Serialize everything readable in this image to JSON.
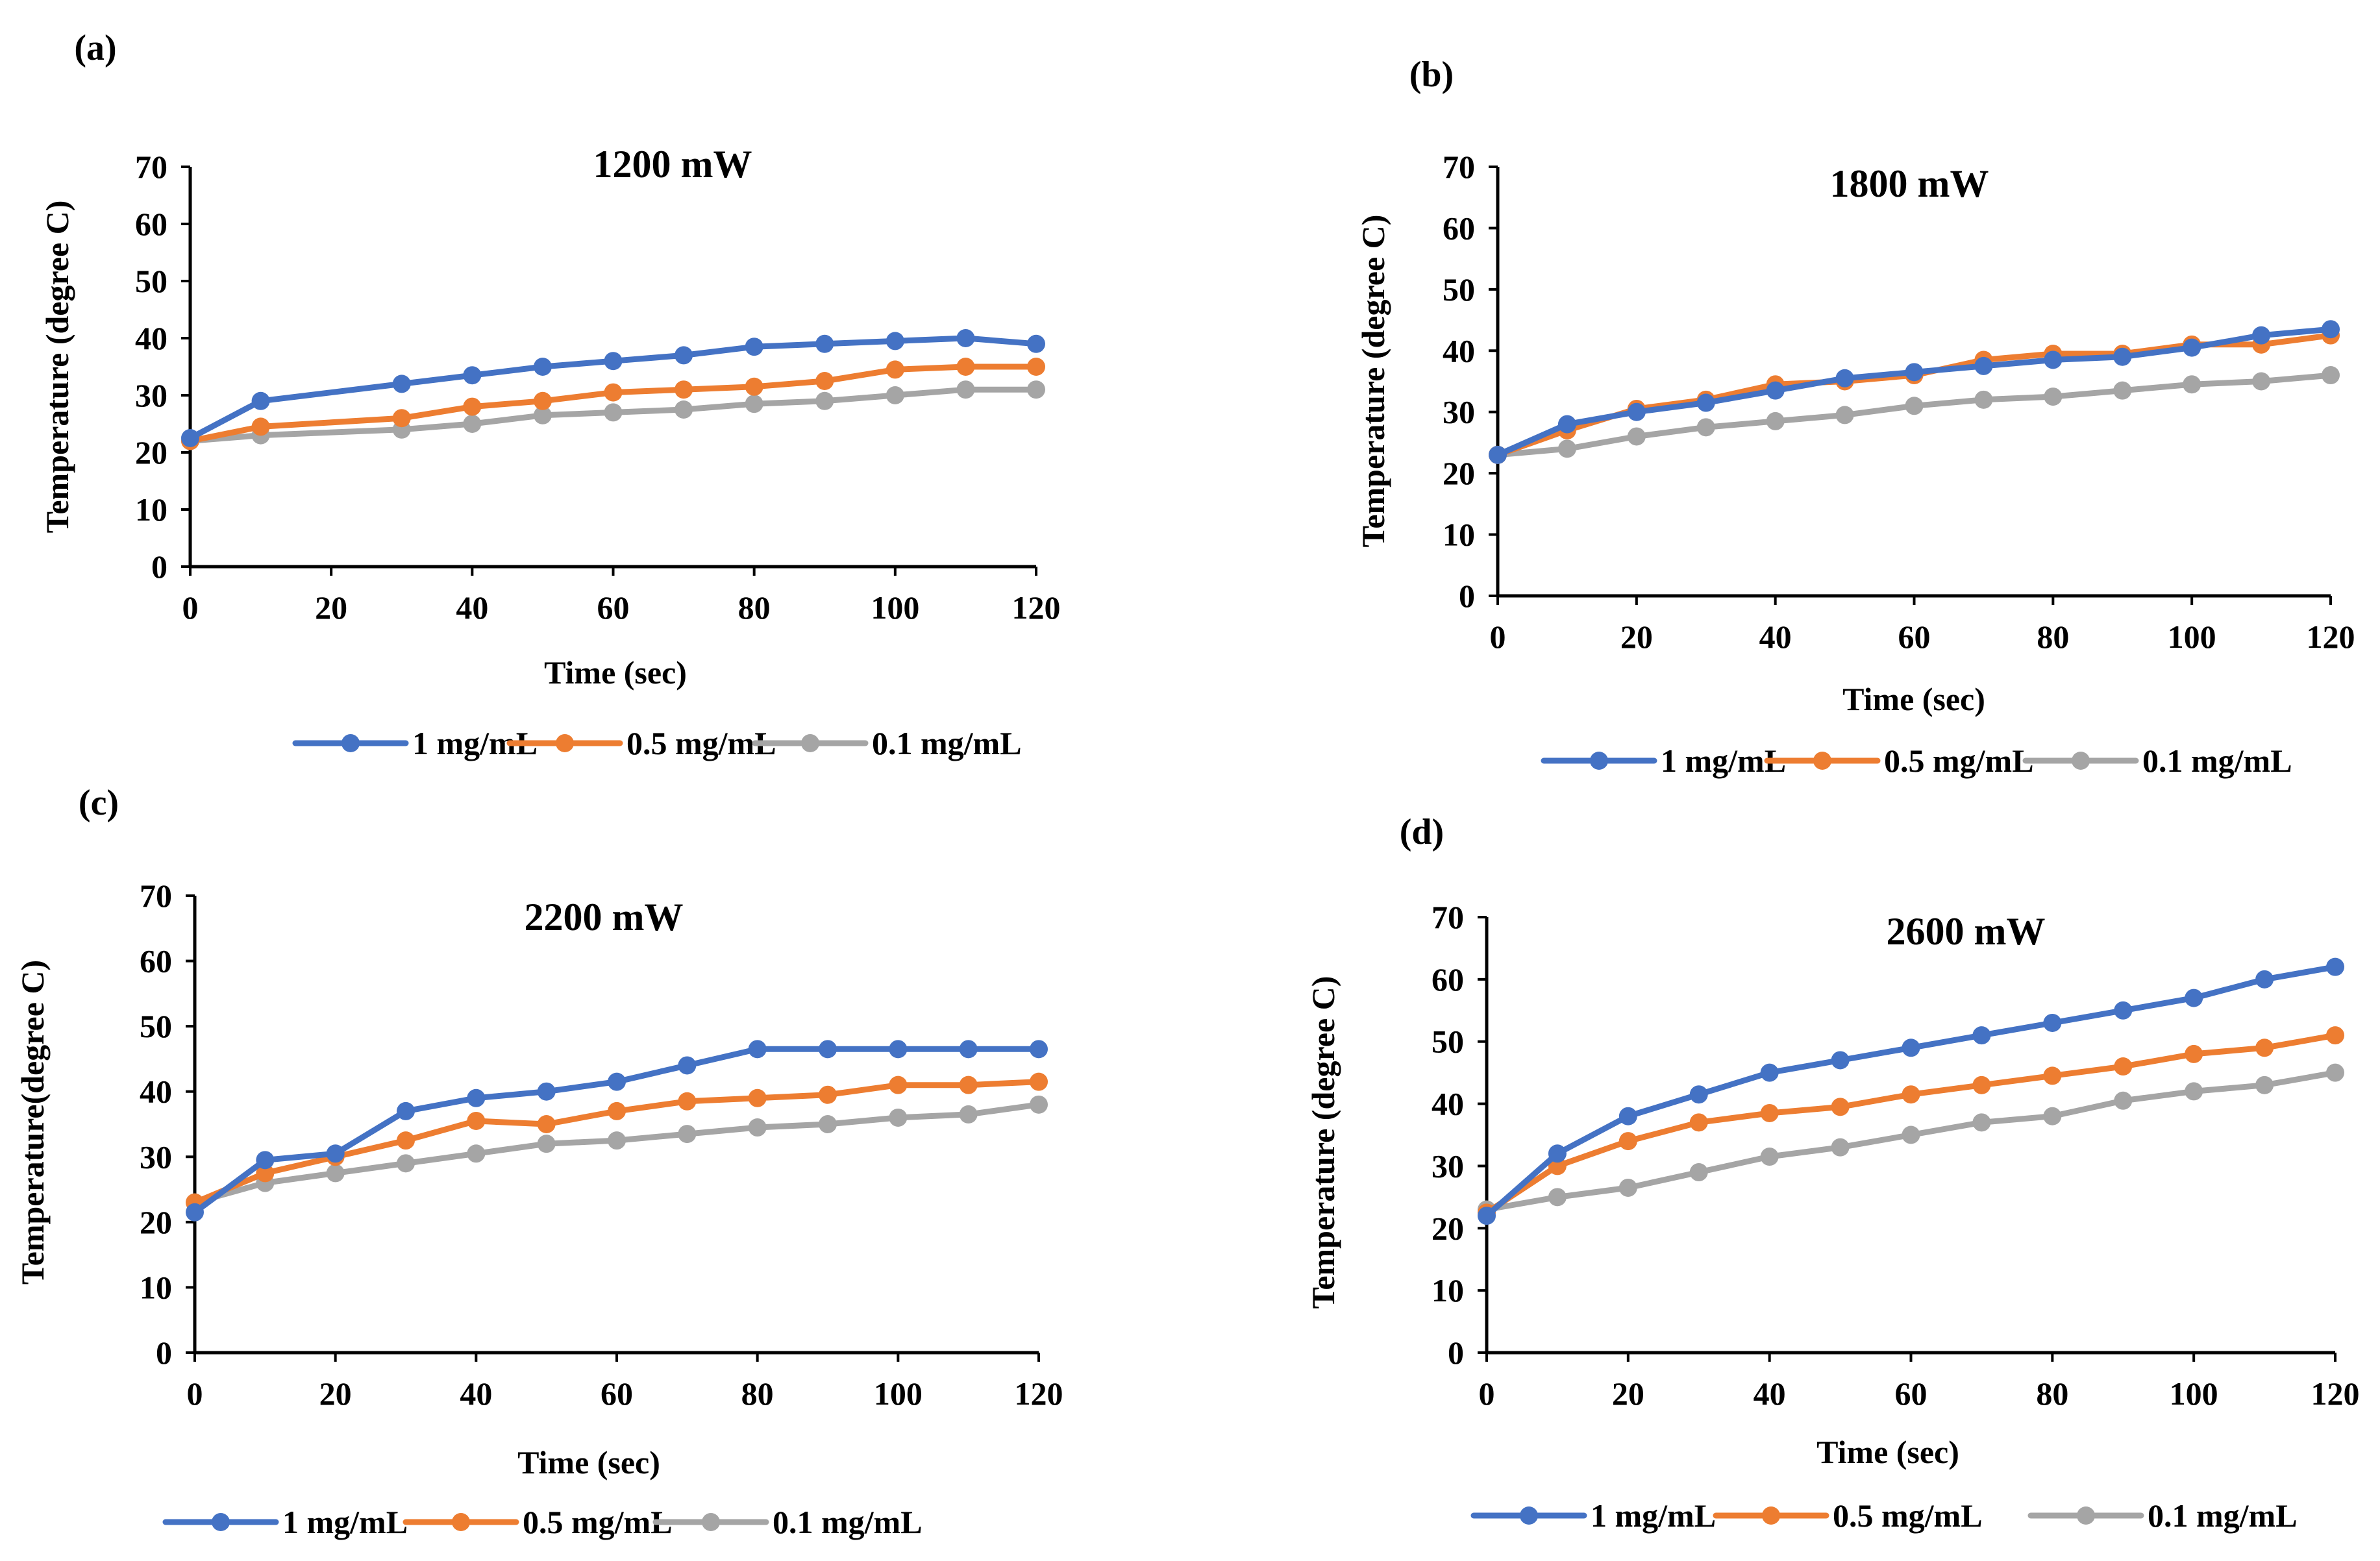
{
  "colors": {
    "s1": "#4472C4",
    "s2": "#ED7D31",
    "s3": "#A5A5A5",
    "axis": "#000000"
  },
  "chart_data": [
    {
      "label": "(a)",
      "type": "line",
      "title": "1200 mW",
      "xlabel": "Time (sec)",
      "ylabel": "Temperature (degree C)",
      "xlim": [
        0,
        120
      ],
      "ylim": [
        0,
        70
      ],
      "xticks": [
        "0",
        "20",
        "40",
        "60",
        "80",
        "100",
        "120"
      ],
      "yticks": [
        "0",
        "10",
        "20",
        "30",
        "40",
        "50",
        "60",
        "70"
      ],
      "x": [
        0,
        10,
        30,
        40,
        50,
        60,
        70,
        80,
        90,
        100,
        110,
        120
      ],
      "legend_position": "bottom",
      "series": [
        {
          "name": "1 mg/mL",
          "values": [
            22.5,
            29,
            32,
            33.5,
            35,
            36,
            37,
            38.5,
            39,
            39.5,
            40,
            39
          ]
        },
        {
          "name": "0.5 mg/mL",
          "values": [
            22,
            24.5,
            26,
            28,
            29,
            30.5,
            31,
            31.5,
            32.5,
            34.5,
            35,
            35
          ]
        },
        {
          "name": "0.1 mg/mL",
          "values": [
            22,
            23,
            24,
            25,
            26.5,
            27,
            27.5,
            28.5,
            29,
            30,
            31,
            31
          ]
        }
      ]
    },
    {
      "label": "(b)",
      "type": "line",
      "title": "1800 mW",
      "xlabel": "Time (sec)",
      "ylabel": "Temperature (degree C)",
      "xlim": [
        0,
        120
      ],
      "ylim": [
        0,
        70
      ],
      "xticks": [
        "0",
        "20",
        "40",
        "60",
        "80",
        "100",
        "120"
      ],
      "yticks": [
        "0",
        "10",
        "20",
        "30",
        "40",
        "50",
        "60",
        "70"
      ],
      "x": [
        0,
        10,
        20,
        30,
        40,
        50,
        60,
        70,
        80,
        90,
        100,
        110,
        120
      ],
      "legend_position": "bottom",
      "series": [
        {
          "name": "1 mg/mL",
          "values": [
            23,
            28,
            30,
            31.5,
            33.5,
            35.5,
            36.5,
            37.5,
            38.5,
            39,
            40.5,
            42.5,
            43.5
          ]
        },
        {
          "name": "0.5 mg/mL",
          "values": [
            23,
            27,
            30.5,
            32,
            34.5,
            35,
            36,
            38.5,
            39.5,
            39.5,
            41,
            41,
            42.5
          ]
        },
        {
          "name": "0.1 mg/mL",
          "values": [
            23,
            24,
            26,
            27.5,
            28.5,
            29.5,
            31,
            32,
            32.5,
            33.5,
            34.5,
            35,
            36
          ]
        }
      ]
    },
    {
      "label": "(c)",
      "type": "line",
      "title": "2200 mW",
      "xlabel": "Time (sec)",
      "ylabel": "Temperature(degree C)",
      "xlim": [
        0,
        120
      ],
      "ylim": [
        0,
        70
      ],
      "xticks": [
        "0",
        "20",
        "40",
        "60",
        "80",
        "100",
        "120"
      ],
      "yticks": [
        "0",
        "10",
        "20",
        "30",
        "40",
        "50",
        "60",
        "70"
      ],
      "x": [
        0,
        10,
        20,
        30,
        40,
        50,
        60,
        70,
        80,
        90,
        100,
        110,
        120
      ],
      "legend_position": "bottom",
      "series": [
        {
          "name": "1 mg/mL",
          "values": [
            21.5,
            29.5,
            30.5,
            37,
            39,
            40,
            41.5,
            44,
            46.5,
            46.5,
            46.5,
            46.5,
            46.5
          ]
        },
        {
          "name": "0.5 mg/mL",
          "values": [
            23,
            27.5,
            30,
            32.5,
            35.5,
            35,
            37,
            38.5,
            39,
            39.5,
            41,
            41,
            41.5
          ]
        },
        {
          "name": "0.1 mg/mL",
          "values": [
            23,
            26,
            27.5,
            29,
            30.5,
            32,
            32.5,
            33.5,
            34.5,
            35,
            36,
            36.5,
            38
          ]
        }
      ]
    },
    {
      "label": "(d)",
      "type": "line",
      "title": "2600 mW",
      "xlabel": "Time (sec)",
      "ylabel": "Temperature (degree C)",
      "xlim": [
        0,
        120
      ],
      "ylim": [
        0,
        70
      ],
      "xticks": [
        "0",
        "20",
        "40",
        "60",
        "80",
        "100",
        "120"
      ],
      "yticks": [
        "0",
        "10",
        "20",
        "30",
        "40",
        "50",
        "60",
        "70"
      ],
      "x": [
        0,
        10,
        20,
        30,
        40,
        50,
        60,
        70,
        80,
        90,
        100,
        110,
        120
      ],
      "legend_position": "bottom",
      "series": [
        {
          "name": "1 mg/mL",
          "values": [
            22,
            32,
            38,
            41.5,
            45,
            47,
            49,
            51,
            53,
            55,
            57,
            60,
            62
          ]
        },
        {
          "name": "0.5 mg/mL",
          "values": [
            22.5,
            30,
            34,
            37,
            38.5,
            39.5,
            41.5,
            43,
            44.5,
            46,
            48,
            49,
            51
          ]
        },
        {
          "name": "0.1 mg/mL",
          "values": [
            23,
            25,
            26.5,
            29,
            31.5,
            33,
            35,
            37,
            38,
            40.5,
            42,
            43,
            45
          ]
        }
      ]
    }
  ]
}
